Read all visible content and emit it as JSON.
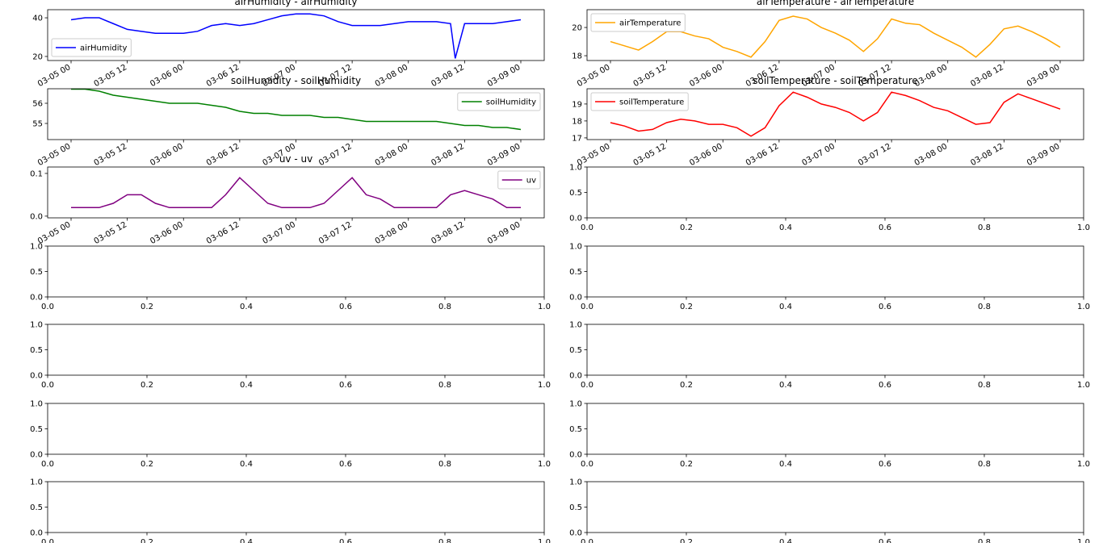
{
  "chart_data": [
    {
      "type": "line",
      "title": "airHumidity - airHumidity",
      "legend": "lower left",
      "x": [
        "03-05 00",
        "03-05 03",
        "03-05 06",
        "03-05 09",
        "03-05 12",
        "03-05 15",
        "03-05 18",
        "03-05 21",
        "03-06 00",
        "03-06 03",
        "03-06 06",
        "03-06 09",
        "03-06 12",
        "03-06 15",
        "03-06 18",
        "03-06 21",
        "03-07 00",
        "03-07 03",
        "03-07 06",
        "03-07 09",
        "03-07 12",
        "03-07 15",
        "03-07 18",
        "03-07 21",
        "03-08 00",
        "03-08 03",
        "03-08 06",
        "03-08 09",
        "03-08 10",
        "03-08 12",
        "03-08 15",
        "03-08 18",
        "03-08 21",
        "03-09 00"
      ],
      "series": [
        {
          "name": "airHumidity",
          "color": "#0000ff",
          "values": [
            39,
            40,
            40,
            37,
            34,
            33,
            32,
            32,
            32,
            33,
            36,
            37,
            36,
            37,
            39,
            41,
            42,
            42,
            41,
            38,
            36,
            36,
            36,
            37,
            38,
            38,
            38,
            37,
            19,
            37,
            37,
            37,
            38,
            39
          ]
        }
      ],
      "xlim": [
        "03-04 19",
        "03-09 05"
      ],
      "xticks": [
        "03-05 00",
        "03-05 12",
        "03-06 00",
        "03-06 12",
        "03-07 00",
        "03-07 12",
        "03-08 00",
        "03-08 12",
        "03-09 00"
      ],
      "ylim": [
        17.9,
        44.2
      ],
      "yticks": [
        20,
        40
      ]
    },
    {
      "type": "line",
      "title": "airTemperature - airTemperature",
      "legend": "upper left",
      "x": [
        "03-05 00",
        "03-05 03",
        "03-05 06",
        "03-05 09",
        "03-05 12",
        "03-05 15",
        "03-05 18",
        "03-05 21",
        "03-06 00",
        "03-06 03",
        "03-06 06",
        "03-06 09",
        "03-06 12",
        "03-06 15",
        "03-06 18",
        "03-06 21",
        "03-07 00",
        "03-07 03",
        "03-07 06",
        "03-07 09",
        "03-07 12",
        "03-07 15",
        "03-07 18",
        "03-07 21",
        "03-08 00",
        "03-08 03",
        "03-08 06",
        "03-08 09",
        "03-08 12",
        "03-08 15",
        "03-08 18",
        "03-08 21",
        "03-09 00"
      ],
      "series": [
        {
          "name": "airTemperature",
          "color": "#ffa500",
          "values": [
            19.0,
            18.7,
            18.4,
            19.0,
            19.7,
            19.7,
            19.4,
            19.2,
            18.6,
            18.3,
            17.9,
            19.0,
            20.5,
            20.8,
            20.6,
            20.0,
            19.6,
            19.1,
            18.3,
            19.2,
            20.6,
            20.3,
            20.2,
            19.6,
            19.1,
            18.6,
            17.9,
            18.8,
            19.9,
            20.1,
            19.7,
            19.2,
            18.6
          ]
        }
      ],
      "xlim": [
        "03-04 19",
        "03-09 05"
      ],
      "xticks": [
        "03-05 00",
        "03-05 12",
        "03-06 00",
        "03-06 12",
        "03-07 00",
        "03-07 12",
        "03-08 00",
        "03-08 12",
        "03-09 00"
      ],
      "ylim": [
        17.66,
        21.26
      ],
      "yticks": [
        18,
        20
      ]
    },
    {
      "type": "line",
      "title": "soilHumidity - soilHumidity",
      "legend": "upper right",
      "x": [
        "03-05 00",
        "03-05 03",
        "03-05 06",
        "03-05 09",
        "03-05 12",
        "03-05 15",
        "03-05 18",
        "03-05 21",
        "03-06 00",
        "03-06 03",
        "03-06 06",
        "03-06 09",
        "03-06 12",
        "03-06 15",
        "03-06 18",
        "03-06 21",
        "03-07 00",
        "03-07 03",
        "03-07 06",
        "03-07 09",
        "03-07 12",
        "03-07 15",
        "03-07 18",
        "03-07 21",
        "03-08 00",
        "03-08 03",
        "03-08 06",
        "03-08 09",
        "03-08 12",
        "03-08 15",
        "03-08 18",
        "03-08 21",
        "03-09 00"
      ],
      "series": [
        {
          "name": "soilHumidity",
          "color": "#008000",
          "values": [
            56.7,
            56.7,
            56.6,
            56.4,
            56.3,
            56.2,
            56.1,
            56.0,
            56.0,
            56.0,
            55.9,
            55.8,
            55.6,
            55.5,
            55.5,
            55.4,
            55.4,
            55.4,
            55.3,
            55.3,
            55.2,
            55.1,
            55.1,
            55.1,
            55.1,
            55.1,
            55.1,
            55.0,
            54.9,
            54.9,
            54.8,
            54.8,
            54.7
          ]
        }
      ],
      "xlim": [
        "03-04 19",
        "03-09 05"
      ],
      "xticks": [
        "03-05 00",
        "03-05 12",
        "03-06 00",
        "03-06 12",
        "03-07 00",
        "03-07 12",
        "03-08 00",
        "03-08 12",
        "03-09 00"
      ],
      "ylim": [
        54.2,
        56.72
      ],
      "yticks": [
        55,
        56
      ]
    },
    {
      "type": "line",
      "title": "soilTemperature - soilTemperature",
      "legend": "upper left",
      "x": [
        "03-05 00",
        "03-05 03",
        "03-05 06",
        "03-05 09",
        "03-05 12",
        "03-05 15",
        "03-05 18",
        "03-05 21",
        "03-06 00",
        "03-06 03",
        "03-06 06",
        "03-06 09",
        "03-06 12",
        "03-06 15",
        "03-06 18",
        "03-06 21",
        "03-07 00",
        "03-07 03",
        "03-07 06",
        "03-07 09",
        "03-07 12",
        "03-07 15",
        "03-07 18",
        "03-07 21",
        "03-08 00",
        "03-08 03",
        "03-08 06",
        "03-08 09",
        "03-08 12",
        "03-08 15",
        "03-08 18",
        "03-08 21",
        "03-09 00"
      ],
      "series": [
        {
          "name": "soilTemperature",
          "color": "#ff0000",
          "values": [
            17.9,
            17.7,
            17.4,
            17.5,
            17.9,
            18.1,
            18.0,
            17.8,
            17.8,
            17.6,
            17.1,
            17.6,
            18.9,
            19.7,
            19.4,
            19.0,
            18.8,
            18.5,
            18.0,
            18.5,
            19.7,
            19.5,
            19.2,
            18.8,
            18.6,
            18.2,
            17.8,
            17.9,
            19.1,
            19.6,
            19.3,
            19.0,
            18.7
          ]
        }
      ],
      "xlim": [
        "03-04 19",
        "03-09 05"
      ],
      "xticks": [
        "03-05 00",
        "03-05 12",
        "03-06 00",
        "03-06 12",
        "03-07 00",
        "03-07 12",
        "03-08 00",
        "03-08 12",
        "03-09 00"
      ],
      "ylim": [
        16.9,
        19.9
      ],
      "yticks": [
        17,
        18,
        19
      ]
    },
    {
      "type": "line",
      "title": "uv - uv",
      "legend": "upper right",
      "x": [
        "03-05 00",
        "03-05 03",
        "03-05 06",
        "03-05 09",
        "03-05 12",
        "03-05 15",
        "03-05 18",
        "03-05 21",
        "03-06 00",
        "03-06 03",
        "03-06 06",
        "03-06 09",
        "03-06 12",
        "03-06 15",
        "03-06 18",
        "03-06 21",
        "03-07 00",
        "03-07 03",
        "03-07 06",
        "03-07 09",
        "03-07 12",
        "03-07 15",
        "03-07 18",
        "03-07 21",
        "03-08 00",
        "03-08 03",
        "03-08 06",
        "03-08 09",
        "03-08 12",
        "03-08 15",
        "03-08 18",
        "03-08 21",
        "03-09 00"
      ],
      "series": [
        {
          "name": "uv",
          "color": "#800080",
          "values": [
            0.02,
            0.02,
            0.02,
            0.03,
            0.05,
            0.05,
            0.03,
            0.02,
            0.02,
            0.02,
            0.02,
            0.05,
            0.09,
            0.06,
            0.03,
            0.02,
            0.02,
            0.02,
            0.03,
            0.06,
            0.09,
            0.05,
            0.04,
            0.02,
            0.02,
            0.02,
            0.02,
            0.05,
            0.06,
            0.05,
            0.04,
            0.02,
            0.02
          ]
        }
      ],
      "xlim": [
        "03-04 19",
        "03-09 05"
      ],
      "xticks": [
        "03-05 00",
        "03-05 12",
        "03-06 00",
        "03-06 12",
        "03-07 00",
        "03-07 12",
        "03-08 00",
        "03-08 12",
        "03-09 00"
      ],
      "ylim": [
        -0.004,
        0.115
      ],
      "yticks": [
        {
          "value": 0,
          "label": "0.0"
        },
        0.1
      ]
    },
    {
      "type": "empty",
      "xlim": [
        0,
        1
      ],
      "xticks": [
        {
          "value": 0,
          "label": "0.0"
        },
        0.2,
        0.4,
        0.6,
        0.8,
        {
          "value": 1,
          "label": "1.0"
        }
      ],
      "ylim": [
        0,
        1
      ],
      "yticks": [
        {
          "value": 0,
          "label": "0.0"
        },
        0.5,
        {
          "value": 1,
          "label": "1.0"
        }
      ]
    },
    {
      "type": "empty",
      "xlim": [
        0,
        1
      ],
      "xticks": [
        {
          "value": 0,
          "label": "0.0"
        },
        0.2,
        0.4,
        0.6,
        0.8,
        {
          "value": 1,
          "label": "1.0"
        }
      ],
      "ylim": [
        0,
        1
      ],
      "yticks": [
        {
          "value": 0,
          "label": "0.0"
        },
        0.5,
        {
          "value": 1,
          "label": "1.0"
        }
      ]
    },
    {
      "type": "empty",
      "xlim": [
        0,
        1
      ],
      "xticks": [
        {
          "value": 0,
          "label": "0.0"
        },
        0.2,
        0.4,
        0.6,
        0.8,
        {
          "value": 1,
          "label": "1.0"
        }
      ],
      "ylim": [
        0,
        1
      ],
      "yticks": [
        {
          "value": 0,
          "label": "0.0"
        },
        0.5,
        {
          "value": 1,
          "label": "1.0"
        }
      ]
    },
    {
      "type": "empty",
      "xlim": [
        0,
        1
      ],
      "xticks": [
        {
          "value": 0,
          "label": "0.0"
        },
        0.2,
        0.4,
        0.6,
        0.8,
        {
          "value": 1,
          "label": "1.0"
        }
      ],
      "ylim": [
        0,
        1
      ],
      "yticks": [
        {
          "value": 0,
          "label": "0.0"
        },
        0.5,
        {
          "value": 1,
          "label": "1.0"
        }
      ]
    },
    {
      "type": "empty",
      "xlim": [
        0,
        1
      ],
      "xticks": [
        {
          "value": 0,
          "label": "0.0"
        },
        0.2,
        0.4,
        0.6,
        0.8,
        {
          "value": 1,
          "label": "1.0"
        }
      ],
      "ylim": [
        0,
        1
      ],
      "yticks": [
        {
          "value": 0,
          "label": "0.0"
        },
        0.5,
        {
          "value": 1,
          "label": "1.0"
        }
      ]
    },
    {
      "type": "empty",
      "xlim": [
        0,
        1
      ],
      "xticks": [
        {
          "value": 0,
          "label": "0.0"
        },
        0.2,
        0.4,
        0.6,
        0.8,
        {
          "value": 1,
          "label": "1.0"
        }
      ],
      "ylim": [
        0,
        1
      ],
      "yticks": [
        {
          "value": 0,
          "label": "0.0"
        },
        0.5,
        {
          "value": 1,
          "label": "1.0"
        }
      ]
    },
    {
      "type": "empty",
      "xlim": [
        0,
        1
      ],
      "xticks": [
        {
          "value": 0,
          "label": "0.0"
        },
        0.2,
        0.4,
        0.6,
        0.8,
        {
          "value": 1,
          "label": "1.0"
        }
      ],
      "ylim": [
        0,
        1
      ],
      "yticks": [
        {
          "value": 0,
          "label": "0.0"
        },
        0.5,
        {
          "value": 1,
          "label": "1.0"
        }
      ]
    },
    {
      "type": "empty",
      "xlim": [
        0,
        1
      ],
      "xticks": [
        {
          "value": 0,
          "label": "0.0"
        },
        0.2,
        0.4,
        0.6,
        0.8,
        {
          "value": 1,
          "label": "1.0"
        }
      ],
      "ylim": [
        0,
        1
      ],
      "yticks": [
        {
          "value": 0,
          "label": "0.0"
        },
        0.5,
        {
          "value": 1,
          "label": "1.0"
        }
      ]
    },
    {
      "type": "empty",
      "xlim": [
        0,
        1
      ],
      "xticks": [
        {
          "value": 0,
          "label": "0.0"
        },
        0.2,
        0.4,
        0.6,
        0.8,
        {
          "value": 1,
          "label": "1.0"
        }
      ],
      "ylim": [
        0,
        1
      ],
      "yticks": [
        {
          "value": 0,
          "label": "0.0"
        },
        0.5,
        {
          "value": 1,
          "label": "1.0"
        }
      ]
    }
  ]
}
